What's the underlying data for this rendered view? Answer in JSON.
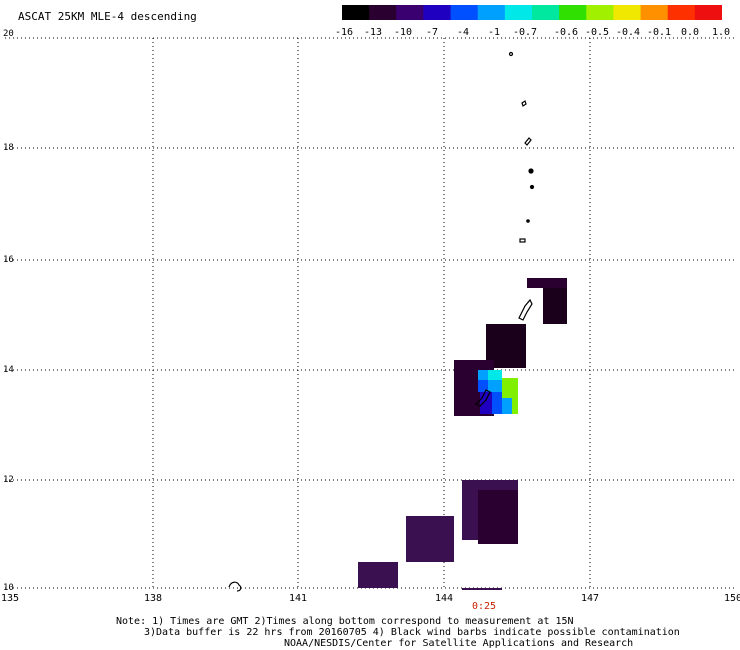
{
  "title": "ASCAT 25KM MLE-4 descending",
  "colorbar": {
    "labels": [
      "-16",
      "-13",
      "-10",
      "-7",
      "-4",
      "-1",
      "-0.7",
      "-0.6",
      "-0.5",
      "-0.4",
      "-0.1",
      "0.0",
      "1.0"
    ],
    "colors": [
      "#000000",
      "#2a0030",
      "#3a0070",
      "#2000c0",
      "#0050ff",
      "#00a0ff",
      "#00e8e8",
      "#00e8a0",
      "#30e000",
      "#a0f000",
      "#f0e800",
      "#ff9000",
      "#ff3000",
      "#ee1010"
    ]
  },
  "axes": {
    "lat_labels": [
      "20",
      "18",
      "16",
      "14",
      "12",
      "10"
    ],
    "lon_labels": [
      "135",
      "138",
      "141",
      "144",
      "147",
      "150"
    ]
  },
  "time_labels": [
    "0:25"
  ],
  "notes": {
    "line1": "Note: 1) Times are GMT 2)Times along bottom correspond to measurement at 15N",
    "line2": "3)Data buffer is 22 hrs from 20160705 4) Black wind barbs indicate possible contamination",
    "line3": "NOAA/NESDIS/Center for Satellite Applications and Research"
  }
}
